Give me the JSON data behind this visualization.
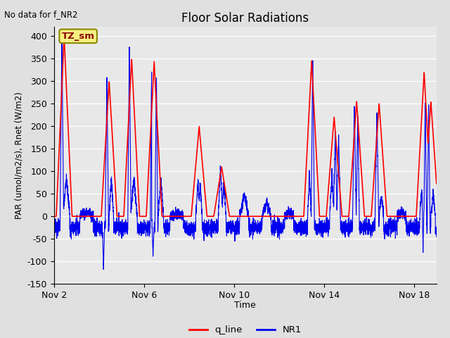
{
  "title": "Floor Solar Radiations",
  "subtitle": "No data for f_NR2",
  "xlabel": "Time",
  "ylabel": "PAR (umol/m2/s), Rnet (W/m2)",
  "ylim": [
    -150,
    420
  ],
  "yticks": [
    -150,
    -100,
    -50,
    0,
    50,
    100,
    150,
    200,
    250,
    300,
    350,
    400
  ],
  "x_tick_labels": [
    "Nov 2",
    "Nov 6",
    "Nov 10",
    "Nov 14",
    "Nov 18"
  ],
  "legend_label_red": "q_line",
  "legend_label_blue": "NR1",
  "annotation_box": "TZ_sm",
  "bg_color": "#e0e0e0",
  "plot_bg_color": "#e8e8e8",
  "line_red": "#ff0000",
  "line_blue": "#0000ee",
  "n_points": 4320,
  "days": 17
}
